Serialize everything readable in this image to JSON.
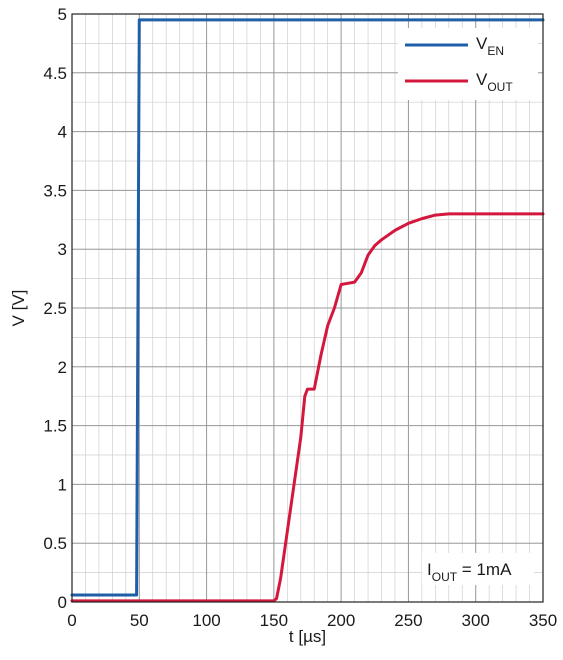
{
  "chart_data": {
    "type": "line",
    "title": "",
    "xlabel": "t [µs]",
    "ylabel": "V [V]",
    "xlim": [
      0,
      350
    ],
    "ylim": [
      0,
      5
    ],
    "grid": true,
    "legend_position": "top-right",
    "x_major_ticks": [
      0,
      50,
      100,
      150,
      200,
      250,
      300,
      350
    ],
    "x_tick_labels": [
      "0",
      "50",
      "100",
      "150",
      "200",
      "250",
      "300",
      "350"
    ],
    "y_major_ticks": [
      0,
      0.5,
      1,
      1.5,
      2,
      2.5,
      3,
      3.5,
      4,
      4.5,
      5
    ],
    "y_tick_labels": [
      "0",
      "0.5",
      "1",
      "1.5",
      "2",
      "2.5",
      "3",
      "3.5",
      "4",
      "4.5",
      "5"
    ],
    "x_minor_step": 10,
    "y_minor_step": 0.25,
    "annotation": {
      "main": "I",
      "sub": "OUT",
      "suffix": " = 1mA"
    },
    "series": [
      {
        "name": "V_EN",
        "label_main": "V",
        "label_sub": "EN",
        "color": "#1f5fa8",
        "points": [
          [
            0,
            0.06
          ],
          [
            48,
            0.06
          ],
          [
            49,
            2.5
          ],
          [
            50,
            4.95
          ],
          [
            350,
            4.95
          ]
        ]
      },
      {
        "name": "V_OUT",
        "label_main": "V",
        "label_sub": "OUT",
        "color": "#d4173c",
        "points": [
          [
            0,
            0.01
          ],
          [
            150,
            0.01
          ],
          [
            152,
            0.03
          ],
          [
            155,
            0.2
          ],
          [
            160,
            0.6
          ],
          [
            165,
            1.0
          ],
          [
            170,
            1.4
          ],
          [
            173,
            1.75
          ],
          [
            175,
            1.81
          ],
          [
            180,
            1.81
          ],
          [
            185,
            2.1
          ],
          [
            190,
            2.35
          ],
          [
            195,
            2.5
          ],
          [
            200,
            2.7
          ],
          [
            205,
            2.71
          ],
          [
            210,
            2.72
          ],
          [
            215,
            2.8
          ],
          [
            220,
            2.95
          ],
          [
            225,
            3.03
          ],
          [
            230,
            3.08
          ],
          [
            240,
            3.16
          ],
          [
            250,
            3.22
          ],
          [
            260,
            3.26
          ],
          [
            270,
            3.29
          ],
          [
            280,
            3.3
          ],
          [
            350,
            3.3
          ]
        ]
      }
    ]
  }
}
